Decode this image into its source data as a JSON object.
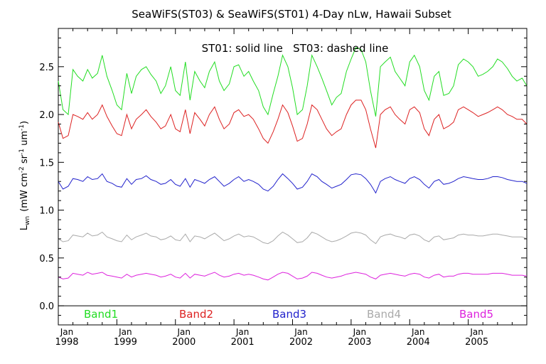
{
  "chart_data": {
    "type": "line",
    "title": "SeaWiFS(ST03) & SeaWiFS(ST01) 4-Day nLw, Hawaii Subset",
    "annotation": "ST01: solid line   ST03: dashed line",
    "ylabel_main": "L",
    "ylabel_sub": "wn",
    "ylabel_units": "(mW cm",
    "ylabel_units_sup1": "-2",
    "ylabel_units_mid": " sr",
    "ylabel_units_sup2": "-1",
    "ylabel_units_end": " um",
    "ylabel_units_sup3": "-1",
    "ylabel_units_close": ")",
    "xlim": [
      1998.0,
      2006.0
    ],
    "ylim": [
      -0.2,
      2.9
    ],
    "y_ticks": [
      0.0,
      0.5,
      1.0,
      1.5,
      2.0,
      2.5
    ],
    "y_tick_labels": [
      "0.0",
      "0.5",
      "1.0",
      "1.5",
      "2.0",
      "2.5"
    ],
    "x_ticks": [
      {
        "value": 1998.0,
        "month": "Jan",
        "year": "1998"
      },
      {
        "value": 1999.0,
        "month": "Jan",
        "year": "1999"
      },
      {
        "value": 2000.0,
        "month": "Jan",
        "year": "2000"
      },
      {
        "value": 2001.0,
        "month": "Jan",
        "year": "2001"
      },
      {
        "value": 2002.0,
        "month": "Jan",
        "year": "2002"
      },
      {
        "value": 2003.0,
        "month": "Jan",
        "year": "2003"
      },
      {
        "value": 2004.0,
        "month": "Jan",
        "year": "2004"
      },
      {
        "value": 2005.0,
        "month": "Jan",
        "year": "2005"
      }
    ],
    "zero_line": true,
    "series": [
      {
        "name": "Band1",
        "color": "#22dd22",
        "x": [
          1998.0,
          1998.08,
          1998.17,
          1998.25,
          1998.33,
          1998.42,
          1998.5,
          1998.58,
          1998.67,
          1998.75,
          1998.83,
          1998.92,
          1999.0,
          1999.08,
          1999.17,
          1999.25,
          1999.33,
          1999.42,
          1999.5,
          1999.58,
          1999.67,
          1999.75,
          1999.83,
          1999.92,
          2000.0,
          2000.08,
          2000.17,
          2000.25,
          2000.33,
          2000.42,
          2000.5,
          2000.58,
          2000.67,
          2000.75,
          2000.83,
          2000.92,
          2001.0,
          2001.08,
          2001.17,
          2001.25,
          2001.33,
          2001.42,
          2001.5,
          2001.58,
          2001.67,
          2001.75,
          2001.83,
          2001.92,
          2002.0,
          2002.08,
          2002.17,
          2002.25,
          2002.33,
          2002.42,
          2002.5,
          2002.58,
          2002.67,
          2002.75,
          2002.83,
          2002.92,
          2003.0,
          2003.08,
          2003.17,
          2003.25,
          2003.33,
          2003.42,
          2003.5,
          2003.58,
          2003.67,
          2003.75,
          2003.83,
          2003.92,
          2004.0,
          2004.08,
          2004.17,
          2004.25,
          2004.33,
          2004.42,
          2004.5,
          2004.58,
          2004.67,
          2004.75,
          2004.83,
          2004.92,
          2005.0,
          2005.08,
          2005.17,
          2005.25,
          2005.33,
          2005.42,
          2005.5,
          2005.58,
          2005.67,
          2005.75,
          2005.83,
          2005.92,
          2006.0
        ],
        "values": [
          2.35,
          2.05,
          2.0,
          2.47,
          2.4,
          2.35,
          2.47,
          2.38,
          2.43,
          2.62,
          2.4,
          2.25,
          2.1,
          2.05,
          2.43,
          2.22,
          2.4,
          2.47,
          2.5,
          2.42,
          2.35,
          2.22,
          2.3,
          2.5,
          2.25,
          2.2,
          2.55,
          2.15,
          2.45,
          2.35,
          2.28,
          2.45,
          2.55,
          2.35,
          2.25,
          2.32,
          2.5,
          2.52,
          2.4,
          2.45,
          2.35,
          2.25,
          2.08,
          2.0,
          2.22,
          2.4,
          2.62,
          2.5,
          2.28,
          2.0,
          2.05,
          2.3,
          2.62,
          2.5,
          2.38,
          2.25,
          2.1,
          2.18,
          2.22,
          2.45,
          2.58,
          2.7,
          2.68,
          2.55,
          2.25,
          1.98,
          2.5,
          2.55,
          2.6,
          2.45,
          2.38,
          2.3,
          2.55,
          2.62,
          2.5,
          2.25,
          2.15,
          2.4,
          2.45,
          2.2,
          2.22,
          2.3,
          2.52,
          2.58,
          2.55,
          2.5,
          2.4,
          2.42,
          2.45,
          2.5,
          2.58,
          2.55,
          2.48,
          2.4,
          2.35,
          2.38,
          2.3
        ]
      },
      {
        "name": "Band2",
        "color": "#dd2222",
        "x": [
          1998.0,
          1998.08,
          1998.17,
          1998.25,
          1998.33,
          1998.42,
          1998.5,
          1998.58,
          1998.67,
          1998.75,
          1998.83,
          1998.92,
          1999.0,
          1999.08,
          1999.17,
          1999.25,
          1999.33,
          1999.42,
          1999.5,
          1999.58,
          1999.67,
          1999.75,
          1999.83,
          1999.92,
          2000.0,
          2000.08,
          2000.17,
          2000.25,
          2000.33,
          2000.42,
          2000.5,
          2000.58,
          2000.67,
          2000.75,
          2000.83,
          2000.92,
          2001.0,
          2001.08,
          2001.17,
          2001.25,
          2001.33,
          2001.42,
          2001.5,
          2001.58,
          2001.67,
          2001.75,
          2001.83,
          2001.92,
          2002.0,
          2002.08,
          2002.17,
          2002.25,
          2002.33,
          2002.42,
          2002.5,
          2002.58,
          2002.67,
          2002.75,
          2002.83,
          2002.92,
          2003.0,
          2003.08,
          2003.17,
          2003.25,
          2003.33,
          2003.42,
          2003.5,
          2003.58,
          2003.67,
          2003.75,
          2003.83,
          2003.92,
          2004.0,
          2004.08,
          2004.17,
          2004.25,
          2004.33,
          2004.42,
          2004.5,
          2004.58,
          2004.67,
          2004.75,
          2004.83,
          2004.92,
          2005.0,
          2005.08,
          2005.17,
          2005.25,
          2005.33,
          2005.42,
          2005.5,
          2005.58,
          2005.67,
          2005.75,
          2005.83,
          2005.92,
          2006.0
        ],
        "values": [
          1.92,
          1.75,
          1.78,
          2.0,
          1.98,
          1.95,
          2.02,
          1.95,
          2.0,
          2.1,
          1.98,
          1.88,
          1.8,
          1.78,
          2.0,
          1.85,
          1.95,
          2.0,
          2.05,
          1.98,
          1.92,
          1.85,
          1.88,
          2.0,
          1.85,
          1.82,
          2.05,
          1.8,
          2.02,
          1.95,
          1.88,
          2.0,
          2.08,
          1.95,
          1.85,
          1.9,
          2.02,
          2.05,
          1.98,
          2.0,
          1.95,
          1.85,
          1.75,
          1.7,
          1.82,
          1.95,
          2.1,
          2.02,
          1.88,
          1.72,
          1.75,
          1.9,
          2.1,
          2.05,
          1.95,
          1.85,
          1.78,
          1.82,
          1.85,
          2.0,
          2.1,
          2.15,
          2.15,
          2.05,
          1.85,
          1.65,
          2.0,
          2.05,
          2.08,
          2.0,
          1.95,
          1.9,
          2.05,
          2.08,
          2.02,
          1.85,
          1.78,
          1.95,
          2.0,
          1.85,
          1.88,
          1.92,
          2.05,
          2.08,
          2.05,
          2.02,
          1.98,
          2.0,
          2.02,
          2.05,
          2.08,
          2.05,
          2.0,
          1.98,
          1.95,
          1.95,
          1.9
        ]
      },
      {
        "name": "Band3",
        "color": "#2222cc",
        "x": [
          1998.0,
          1998.08,
          1998.17,
          1998.25,
          1998.33,
          1998.42,
          1998.5,
          1998.58,
          1998.67,
          1998.75,
          1998.83,
          1998.92,
          1999.0,
          1999.08,
          1999.17,
          1999.25,
          1999.33,
          1999.42,
          1999.5,
          1999.58,
          1999.67,
          1999.75,
          1999.83,
          1999.92,
          2000.0,
          2000.08,
          2000.17,
          2000.25,
          2000.33,
          2000.42,
          2000.5,
          2000.58,
          2000.67,
          2000.75,
          2000.83,
          2000.92,
          2001.0,
          2001.08,
          2001.17,
          2001.25,
          2001.33,
          2001.42,
          2001.5,
          2001.58,
          2001.67,
          2001.75,
          2001.83,
          2001.92,
          2002.0,
          2002.08,
          2002.17,
          2002.25,
          2002.33,
          2002.42,
          2002.5,
          2002.58,
          2002.67,
          2002.75,
          2002.83,
          2002.92,
          2003.0,
          2003.08,
          2003.17,
          2003.25,
          2003.33,
          2003.42,
          2003.5,
          2003.58,
          2003.67,
          2003.75,
          2003.83,
          2003.92,
          2004.0,
          2004.08,
          2004.17,
          2004.25,
          2004.33,
          2004.42,
          2004.5,
          2004.58,
          2004.67,
          2004.75,
          2004.83,
          2004.92,
          2005.0,
          2005.08,
          2005.17,
          2005.25,
          2005.33,
          2005.42,
          2005.5,
          2005.58,
          2005.67,
          2005.75,
          2005.83,
          2005.92,
          2006.0
        ],
        "values": [
          1.3,
          1.22,
          1.25,
          1.33,
          1.32,
          1.3,
          1.35,
          1.32,
          1.33,
          1.38,
          1.3,
          1.28,
          1.25,
          1.24,
          1.33,
          1.27,
          1.32,
          1.33,
          1.36,
          1.32,
          1.3,
          1.27,
          1.28,
          1.32,
          1.27,
          1.25,
          1.33,
          1.24,
          1.32,
          1.3,
          1.28,
          1.32,
          1.35,
          1.3,
          1.25,
          1.28,
          1.32,
          1.35,
          1.3,
          1.32,
          1.3,
          1.27,
          1.22,
          1.2,
          1.25,
          1.32,
          1.38,
          1.33,
          1.28,
          1.22,
          1.24,
          1.3,
          1.38,
          1.35,
          1.3,
          1.27,
          1.23,
          1.25,
          1.27,
          1.32,
          1.37,
          1.38,
          1.37,
          1.33,
          1.27,
          1.18,
          1.3,
          1.33,
          1.35,
          1.32,
          1.3,
          1.28,
          1.33,
          1.35,
          1.32,
          1.27,
          1.23,
          1.3,
          1.32,
          1.27,
          1.28,
          1.3,
          1.33,
          1.35,
          1.34,
          1.33,
          1.32,
          1.32,
          1.33,
          1.35,
          1.35,
          1.34,
          1.32,
          1.31,
          1.3,
          1.3,
          1.28
        ]
      },
      {
        "name": "Band4",
        "color": "#aaaaaa",
        "x": [
          1998.0,
          1998.08,
          1998.17,
          1998.25,
          1998.33,
          1998.42,
          1998.5,
          1998.58,
          1998.67,
          1998.75,
          1998.83,
          1998.92,
          1999.0,
          1999.08,
          1999.17,
          1999.25,
          1999.33,
          1999.42,
          1999.5,
          1999.58,
          1999.67,
          1999.75,
          1999.83,
          1999.92,
          2000.0,
          2000.08,
          2000.17,
          2000.25,
          2000.33,
          2000.42,
          2000.5,
          2000.58,
          2000.67,
          2000.75,
          2000.83,
          2000.92,
          2001.0,
          2001.08,
          2001.17,
          2001.25,
          2001.33,
          2001.42,
          2001.5,
          2001.58,
          2001.67,
          2001.75,
          2001.83,
          2001.92,
          2002.0,
          2002.08,
          2002.17,
          2002.25,
          2002.33,
          2002.42,
          2002.5,
          2002.58,
          2002.67,
          2002.75,
          2002.83,
          2002.92,
          2003.0,
          2003.08,
          2003.17,
          2003.25,
          2003.33,
          2003.42,
          2003.5,
          2003.58,
          2003.67,
          2003.75,
          2003.83,
          2003.92,
          2004.0,
          2004.08,
          2004.17,
          2004.25,
          2004.33,
          2004.42,
          2004.5,
          2004.58,
          2004.67,
          2004.75,
          2004.83,
          2004.92,
          2005.0,
          2005.08,
          2005.17,
          2005.25,
          2005.33,
          2005.42,
          2005.5,
          2005.58,
          2005.67,
          2005.75,
          2005.83,
          2005.92,
          2006.0
        ],
        "values": [
          0.7,
          0.67,
          0.68,
          0.74,
          0.73,
          0.72,
          0.76,
          0.73,
          0.74,
          0.77,
          0.72,
          0.7,
          0.68,
          0.67,
          0.74,
          0.69,
          0.72,
          0.74,
          0.76,
          0.73,
          0.72,
          0.69,
          0.7,
          0.73,
          0.69,
          0.68,
          0.75,
          0.67,
          0.73,
          0.72,
          0.7,
          0.73,
          0.76,
          0.72,
          0.68,
          0.7,
          0.73,
          0.75,
          0.72,
          0.73,
          0.72,
          0.69,
          0.66,
          0.65,
          0.68,
          0.73,
          0.77,
          0.74,
          0.7,
          0.66,
          0.67,
          0.71,
          0.77,
          0.75,
          0.72,
          0.69,
          0.67,
          0.68,
          0.7,
          0.73,
          0.76,
          0.77,
          0.76,
          0.74,
          0.69,
          0.65,
          0.72,
          0.74,
          0.75,
          0.73,
          0.72,
          0.7,
          0.74,
          0.75,
          0.73,
          0.69,
          0.67,
          0.72,
          0.73,
          0.69,
          0.7,
          0.71,
          0.74,
          0.75,
          0.74,
          0.74,
          0.73,
          0.73,
          0.74,
          0.75,
          0.75,
          0.74,
          0.73,
          0.72,
          0.72,
          0.72,
          0.7
        ]
      },
      {
        "name": "Band5",
        "color": "#dd22dd",
        "x": [
          1998.0,
          1998.08,
          1998.17,
          1998.25,
          1998.33,
          1998.42,
          1998.5,
          1998.58,
          1998.67,
          1998.75,
          1998.83,
          1998.92,
          1999.0,
          1999.08,
          1999.17,
          1999.25,
          1999.33,
          1999.42,
          1999.5,
          1999.58,
          1999.67,
          1999.75,
          1999.83,
          1999.92,
          2000.0,
          2000.08,
          2000.17,
          2000.25,
          2000.33,
          2000.42,
          2000.5,
          2000.58,
          2000.67,
          2000.75,
          2000.83,
          2000.92,
          2001.0,
          2001.08,
          2001.17,
          2001.25,
          2001.33,
          2001.42,
          2001.5,
          2001.58,
          2001.67,
          2001.75,
          2001.83,
          2001.92,
          2002.0,
          2002.08,
          2002.17,
          2002.25,
          2002.33,
          2002.42,
          2002.5,
          2002.58,
          2002.67,
          2002.75,
          2002.83,
          2002.92,
          2003.0,
          2003.08,
          2003.17,
          2003.25,
          2003.33,
          2003.42,
          2003.5,
          2003.58,
          2003.67,
          2003.75,
          2003.83,
          2003.92,
          2004.0,
          2004.08,
          2004.17,
          2004.25,
          2004.33,
          2004.42,
          2004.5,
          2004.58,
          2004.67,
          2004.75,
          2004.83,
          2004.92,
          2005.0,
          2005.08,
          2005.17,
          2005.25,
          2005.33,
          2005.42,
          2005.5,
          2005.58,
          2005.67,
          2005.75,
          2005.83,
          2005.92,
          2006.0
        ],
        "values": [
          0.3,
          0.28,
          0.29,
          0.34,
          0.33,
          0.32,
          0.35,
          0.33,
          0.34,
          0.35,
          0.32,
          0.31,
          0.3,
          0.29,
          0.33,
          0.3,
          0.32,
          0.33,
          0.34,
          0.33,
          0.32,
          0.3,
          0.31,
          0.33,
          0.3,
          0.29,
          0.34,
          0.29,
          0.33,
          0.32,
          0.31,
          0.33,
          0.35,
          0.32,
          0.3,
          0.31,
          0.33,
          0.34,
          0.32,
          0.33,
          0.32,
          0.3,
          0.28,
          0.27,
          0.3,
          0.33,
          0.35,
          0.34,
          0.31,
          0.28,
          0.29,
          0.31,
          0.35,
          0.34,
          0.32,
          0.3,
          0.29,
          0.3,
          0.31,
          0.33,
          0.34,
          0.35,
          0.34,
          0.33,
          0.3,
          0.28,
          0.32,
          0.33,
          0.34,
          0.33,
          0.32,
          0.31,
          0.33,
          0.34,
          0.33,
          0.3,
          0.29,
          0.32,
          0.33,
          0.3,
          0.31,
          0.31,
          0.33,
          0.34,
          0.34,
          0.33,
          0.33,
          0.33,
          0.33,
          0.34,
          0.34,
          0.34,
          0.33,
          0.32,
          0.32,
          0.32,
          0.31
        ]
      }
    ]
  }
}
